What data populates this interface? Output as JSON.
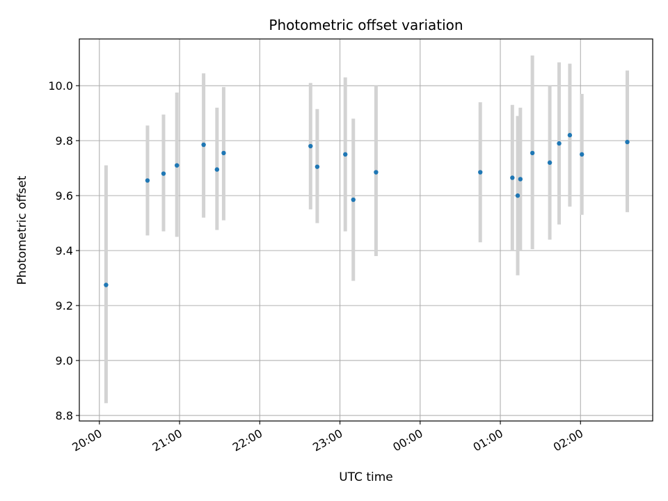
{
  "chart_data": {
    "type": "scatter",
    "title": "Photometric offset variation",
    "xlabel": "UTC time",
    "ylabel": "Photometric offset",
    "x_is_time": true,
    "xlim": [
      "19:45",
      "02:54"
    ],
    "ylim": [
      8.78,
      10.17
    ],
    "xticks": [
      {
        "t": "20:00",
        "label": "20:00"
      },
      {
        "t": "21:00",
        "label": "21:00"
      },
      {
        "t": "22:00",
        "label": "22:00"
      },
      {
        "t": "23:00",
        "label": "23:00"
      },
      {
        "t": "00:00",
        "label": "00:00"
      },
      {
        "t": "01:00",
        "label": "01:00"
      },
      {
        "t": "02:00",
        "label": "02:00"
      }
    ],
    "yticks": [
      {
        "v": 8.8,
        "label": "8.8"
      },
      {
        "v": 9.0,
        "label": "9.0"
      },
      {
        "v": 9.2,
        "label": "9.2"
      },
      {
        "v": 9.4,
        "label": "9.4"
      },
      {
        "v": 9.6,
        "label": "9.6"
      },
      {
        "v": 9.8,
        "label": "9.8"
      },
      {
        "v": 10.0,
        "label": "10.0"
      }
    ],
    "grid": true,
    "colors": {
      "point": "#1f77b4",
      "errorbar": "#d3d3d3",
      "grid": "#b0b0b0"
    },
    "points": [
      {
        "t": "20:05",
        "y": 9.275,
        "lo": 8.845,
        "hi": 9.71
      },
      {
        "t": "20:36",
        "y": 9.655,
        "lo": 9.455,
        "hi": 9.855
      },
      {
        "t": "20:48",
        "y": 9.68,
        "lo": 9.47,
        "hi": 9.895
      },
      {
        "t": "20:58",
        "y": 9.71,
        "lo": 9.45,
        "hi": 9.975
      },
      {
        "t": "21:18",
        "y": 9.785,
        "lo": 9.52,
        "hi": 10.045
      },
      {
        "t": "21:28",
        "y": 9.695,
        "lo": 9.475,
        "hi": 9.92
      },
      {
        "t": "21:33",
        "y": 9.755,
        "lo": 9.51,
        "hi": 9.995
      },
      {
        "t": "22:38",
        "y": 9.78,
        "lo": 9.55,
        "hi": 10.01
      },
      {
        "t": "22:43",
        "y": 9.705,
        "lo": 9.5,
        "hi": 9.915
      },
      {
        "t": "23:04",
        "y": 9.75,
        "lo": 9.47,
        "hi": 10.03
      },
      {
        "t": "23:10",
        "y": 9.585,
        "lo": 9.29,
        "hi": 9.88
      },
      {
        "t": "23:27",
        "y": 9.685,
        "lo": 9.38,
        "hi": 10.0
      },
      {
        "t": "00:45",
        "y": 9.685,
        "lo": 9.43,
        "hi": 9.94
      },
      {
        "t": "01:09",
        "y": 9.665,
        "lo": 9.4,
        "hi": 9.93
      },
      {
        "t": "01:13",
        "y": 9.6,
        "lo": 9.31,
        "hi": 9.89
      },
      {
        "t": "01:15",
        "y": 9.66,
        "lo": 9.4,
        "hi": 9.92
      },
      {
        "t": "01:24",
        "y": 9.755,
        "lo": 9.405,
        "hi": 10.11
      },
      {
        "t": "01:37",
        "y": 9.72,
        "lo": 9.44,
        "hi": 10.0
      },
      {
        "t": "01:44",
        "y": 9.79,
        "lo": 9.495,
        "hi": 10.085
      },
      {
        "t": "01:52",
        "y": 9.82,
        "lo": 9.56,
        "hi": 10.08
      },
      {
        "t": "02:01",
        "y": 9.75,
        "lo": 9.53,
        "hi": 9.97
      },
      {
        "t": "02:35",
        "y": 9.795,
        "lo": 9.54,
        "hi": 10.055
      }
    ]
  }
}
